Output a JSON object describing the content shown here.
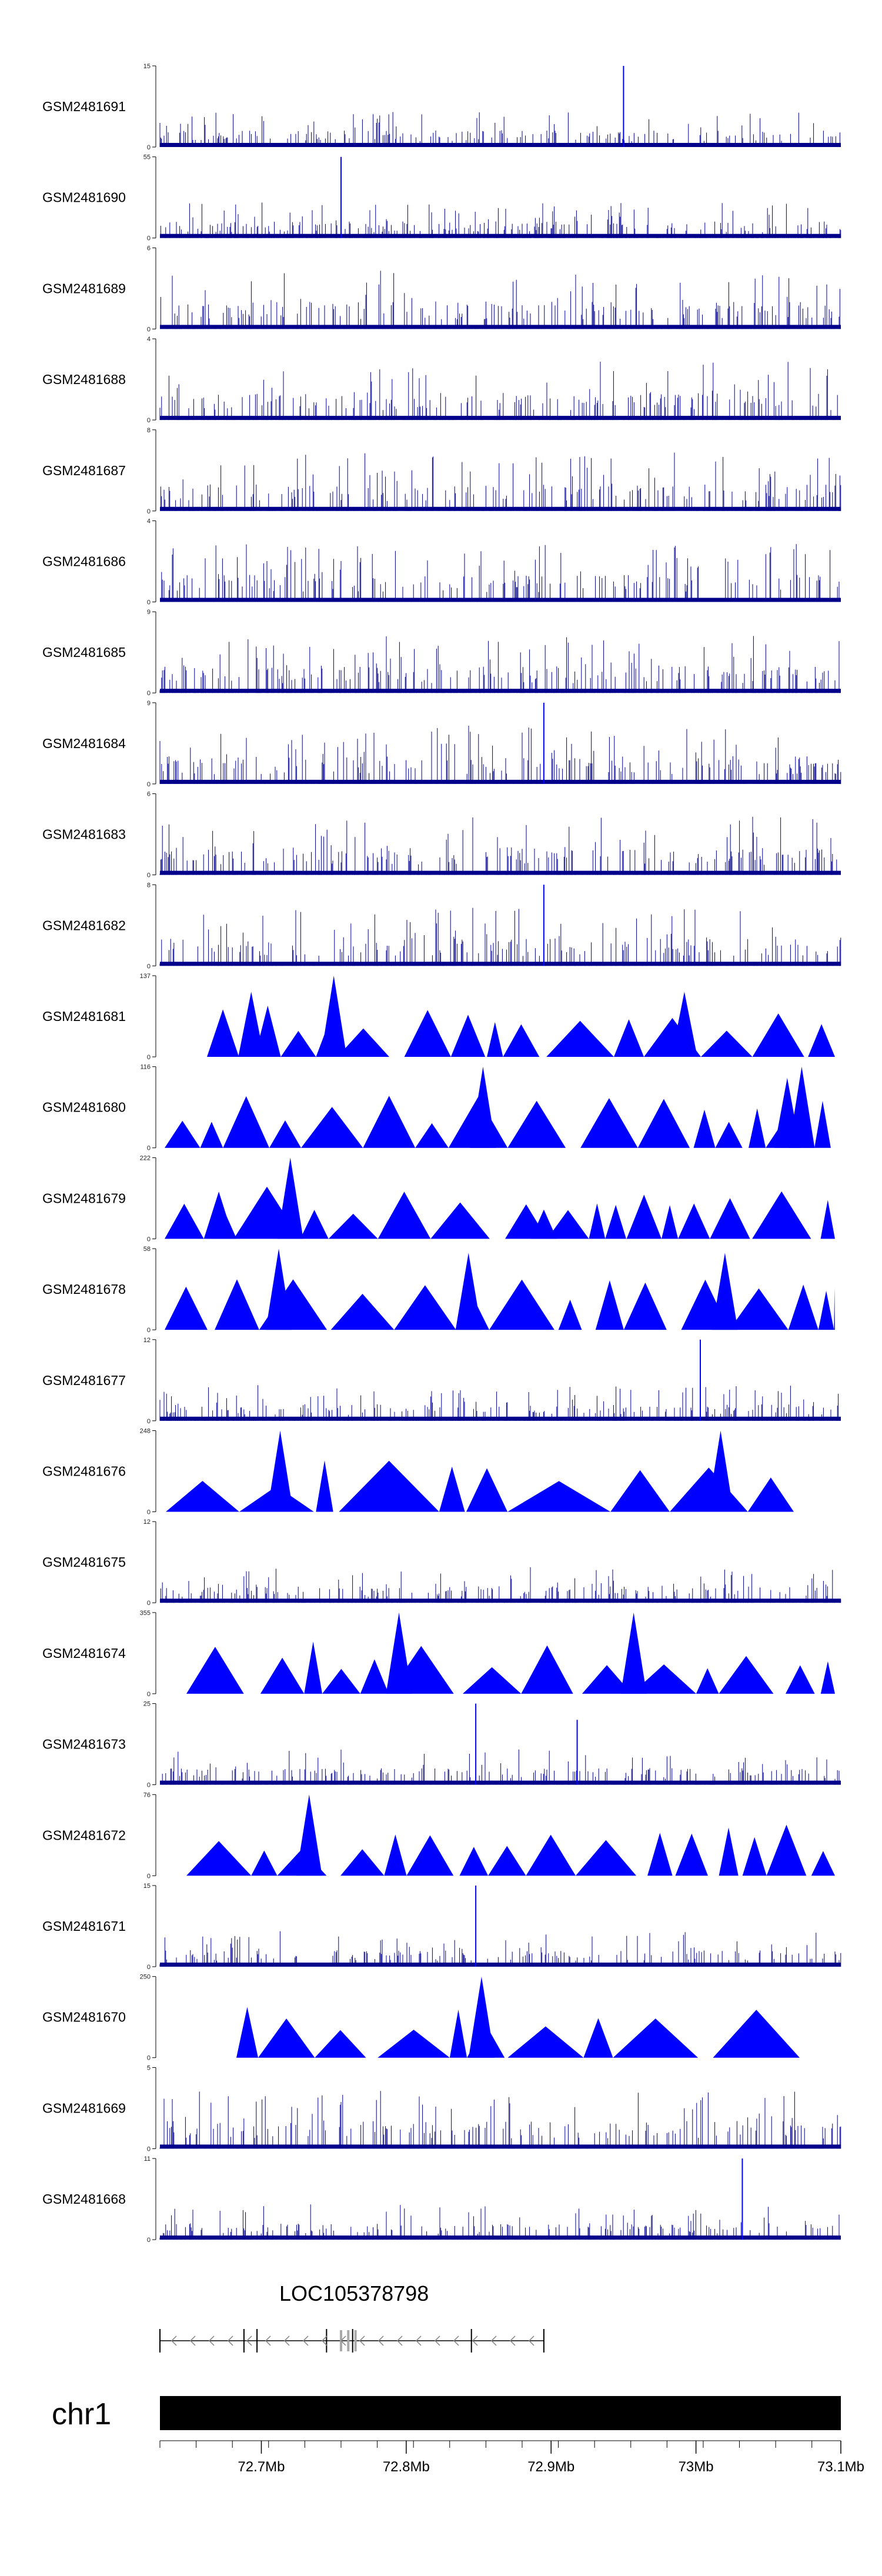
{
  "colors": {
    "signal": "#0000ff",
    "signal_dark": "#00008b",
    "axis": "#000000",
    "gene_line": "#000000",
    "gene_exon": "#a9a9a9",
    "chromosome": "#000000"
  },
  "chart_data": {
    "type": "area",
    "x_unit": "Mb",
    "xlim": [
      72.63,
      73.1
    ],
    "tracks": [
      {
        "name": "GSM2481691",
        "ylim": [
          0,
          15
        ],
        "pattern": "dense",
        "peaks": [
          {
            "x": 72.95,
            "y": 15
          }
        ]
      },
      {
        "name": "GSM2481690",
        "ylim": [
          0,
          55
        ],
        "pattern": "dense",
        "peaks": [
          {
            "x": 72.755,
            "y": 55
          }
        ]
      },
      {
        "name": "GSM2481689",
        "ylim": [
          0,
          6
        ],
        "pattern": "dense",
        "peaks": []
      },
      {
        "name": "GSM2481688",
        "ylim": [
          0,
          4
        ],
        "pattern": "dense",
        "peaks": []
      },
      {
        "name": "GSM2481687",
        "ylim": [
          0,
          8
        ],
        "pattern": "dense",
        "peaks": []
      },
      {
        "name": "GSM2481686",
        "ylim": [
          0,
          4
        ],
        "pattern": "dense",
        "peaks": []
      },
      {
        "name": "GSM2481685",
        "ylim": [
          0,
          9
        ],
        "pattern": "dense",
        "peaks": []
      },
      {
        "name": "GSM2481684",
        "ylim": [
          0,
          9
        ],
        "pattern": "dense",
        "peaks": [
          {
            "x": 72.895,
            "y": 9
          }
        ]
      },
      {
        "name": "GSM2481683",
        "ylim": [
          0,
          6
        ],
        "pattern": "dense",
        "peaks": []
      },
      {
        "name": "GSM2481682",
        "ylim": [
          0,
          8
        ],
        "pattern": "dense",
        "peaks": [
          {
            "x": 72.895,
            "y": 8
          }
        ]
      },
      {
        "name": "GSM2481681",
        "ylim": [
          0,
          137
        ],
        "pattern": "triangles",
        "peaks": [
          {
            "x": 72.693,
            "y": 110
          },
          {
            "x": 72.75,
            "y": 137
          },
          {
            "x": 72.992,
            "y": 110
          }
        ]
      },
      {
        "name": "GSM2481680",
        "ylim": [
          0,
          116
        ],
        "pattern": "triangles",
        "peaks": [
          {
            "x": 72.853,
            "y": 116
          },
          {
            "x": 73.073,
            "y": 116
          },
          {
            "x": 73.063,
            "y": 100
          }
        ]
      },
      {
        "name": "GSM2481679",
        "ylim": [
          0,
          222
        ],
        "pattern": "triangles",
        "peaks": [
          {
            "x": 72.72,
            "y": 222
          },
          {
            "x": 72.674,
            "y": 80
          },
          {
            "x": 72.895,
            "y": 80
          }
        ]
      },
      {
        "name": "GSM2481678",
        "ylim": [
          0,
          58
        ],
        "pattern": "triangles",
        "peaks": [
          {
            "x": 72.712,
            "y": 58
          },
          {
            "x": 72.843,
            "y": 55
          },
          {
            "x": 73.02,
            "y": 55
          }
        ]
      },
      {
        "name": "GSM2481677",
        "ylim": [
          0,
          12
        ],
        "pattern": "dense",
        "peaks": [
          {
            "x": 73.003,
            "y": 12
          }
        ]
      },
      {
        "name": "GSM2481676",
        "ylim": [
          0,
          248
        ],
        "pattern": "triangles",
        "peaks": [
          {
            "x": 72.713,
            "y": 248
          },
          {
            "x": 73.017,
            "y": 248
          }
        ]
      },
      {
        "name": "GSM2481675",
        "ylim": [
          0,
          12
        ],
        "pattern": "dense",
        "peaks": []
      },
      {
        "name": "GSM2481674",
        "ylim": [
          0,
          355
        ],
        "pattern": "triangles",
        "peaks": [
          {
            "x": 72.795,
            "y": 355
          },
          {
            "x": 72.957,
            "y": 355
          }
        ]
      },
      {
        "name": "GSM2481673",
        "ylim": [
          0,
          25
        ],
        "pattern": "dense",
        "peaks": [
          {
            "x": 72.848,
            "y": 25
          },
          {
            "x": 72.918,
            "y": 20
          }
        ]
      },
      {
        "name": "GSM2481672",
        "ylim": [
          0,
          76
        ],
        "pattern": "triangles",
        "peaks": [
          {
            "x": 72.733,
            "y": 76
          }
        ]
      },
      {
        "name": "GSM2481671",
        "ylim": [
          0,
          15
        ],
        "pattern": "dense",
        "peaks": [
          {
            "x": 72.848,
            "y": 15
          }
        ]
      },
      {
        "name": "GSM2481670",
        "ylim": [
          0,
          250
        ],
        "pattern": "triangles",
        "peaks": [
          {
            "x": 72.852,
            "y": 250
          }
        ]
      },
      {
        "name": "GSM2481669",
        "ylim": [
          0,
          5
        ],
        "pattern": "dense",
        "peaks": []
      },
      {
        "name": "GSM2481668",
        "ylim": [
          0,
          11
        ],
        "pattern": "dense",
        "peaks": [
          {
            "x": 73.032,
            "y": 11
          }
        ]
      }
    ],
    "gene": {
      "name": "LOC105378798",
      "start": 72.63,
      "end": 72.895,
      "strand": "-"
    },
    "chromosome": {
      "label": "chr1",
      "ticks": [
        72.7,
        72.8,
        72.9,
        73.0,
        73.1
      ],
      "tick_labels": [
        "72.7Mb",
        "72.8Mb",
        "72.9Mb",
        "73Mb",
        "73.1Mb"
      ]
    }
  }
}
